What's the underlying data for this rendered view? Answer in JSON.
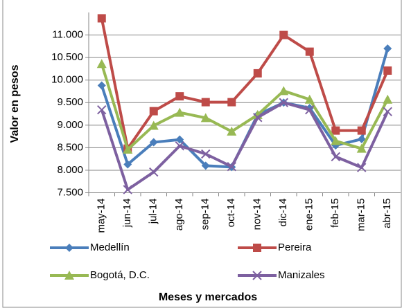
{
  "chart_data": {
    "type": "line",
    "y_label": "Valor en pesos",
    "x_label": "Meses y mercados",
    "categories": [
      "may-14",
      "jun-14",
      "jul-14",
      "ago-14",
      "sep-14",
      "oct-14",
      "nov-14",
      "dic-14",
      "ene-15",
      "feb-15",
      "mar-15",
      "abr-15"
    ],
    "series": [
      {
        "name": "Medellín",
        "color": "#4a7ebb",
        "marker": "diamond",
        "values": [
          9880,
          8130,
          8620,
          8680,
          8100,
          8070,
          9230,
          9500,
          9380,
          8550,
          8690,
          10700
        ]
      },
      {
        "name": "Pereira",
        "color": "#be4b48",
        "marker": "square",
        "values": [
          11370,
          8480,
          9310,
          9640,
          9510,
          9510,
          10150,
          11000,
          10630,
          8880,
          8880,
          10210
        ]
      },
      {
        "name": "Bogotá, D.C.",
        "color": "#98b954",
        "marker": "triangle",
        "values": [
          10360,
          8460,
          8990,
          9280,
          9160,
          8860,
          9230,
          9760,
          9570,
          8650,
          8480,
          9570
        ]
      },
      {
        "name": "Manizales",
        "color": "#7d60a0",
        "marker": "x",
        "values": [
          9340,
          7570,
          7960,
          8540,
          8360,
          8080,
          9170,
          9500,
          9340,
          8300,
          8060,
          9300
        ]
      }
    ],
    "ylim": [
      7500,
      11500
    ],
    "yticks": [
      {
        "value": 7500,
        "label": "7.500"
      },
      {
        "value": 8000,
        "label": "8.000"
      },
      {
        "value": 8500,
        "label": "8.500"
      },
      {
        "value": 9000,
        "label": "9.000"
      },
      {
        "value": 9500,
        "label": "9.500"
      },
      {
        "value": 10000,
        "label": "10.000"
      },
      {
        "value": 10500,
        "label": "10.500"
      },
      {
        "value": 11000,
        "label": "11.000"
      }
    ],
    "grid": true,
    "legend": "bottom"
  }
}
